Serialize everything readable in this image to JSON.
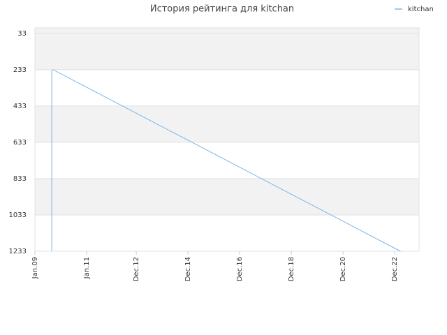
{
  "chart_data": {
    "type": "line",
    "title": "История рейтинга для kitchan",
    "series": [
      {
        "name": "kitchan",
        "color": "#7cb5ec",
        "x": [
          2009.65,
          2009.65,
          2009.7,
          2023.14
        ],
        "values": [
          1233,
          241,
          233,
          1233
        ]
      }
    ],
    "xlim": [
      2009,
      2023.86
    ],
    "xticks": [
      {
        "value": 2009,
        "label": "Jan.09"
      },
      {
        "value": 2011,
        "label": "Jan.11"
      },
      {
        "value": 2012.92,
        "label": "Dec.12"
      },
      {
        "value": 2014.92,
        "label": "Dec.14"
      },
      {
        "value": 2016.92,
        "label": "Dec.16"
      },
      {
        "value": 2018.92,
        "label": "Dec.18"
      },
      {
        "value": 2020.92,
        "label": "Dec.20"
      },
      {
        "value": 2022.92,
        "label": "Dec.22"
      }
    ],
    "ylim": [
      1233,
      3
    ],
    "yticks": [
      33,
      233,
      433,
      633,
      833,
      1033,
      1233
    ],
    "grid": true,
    "legend": "top-right"
  }
}
